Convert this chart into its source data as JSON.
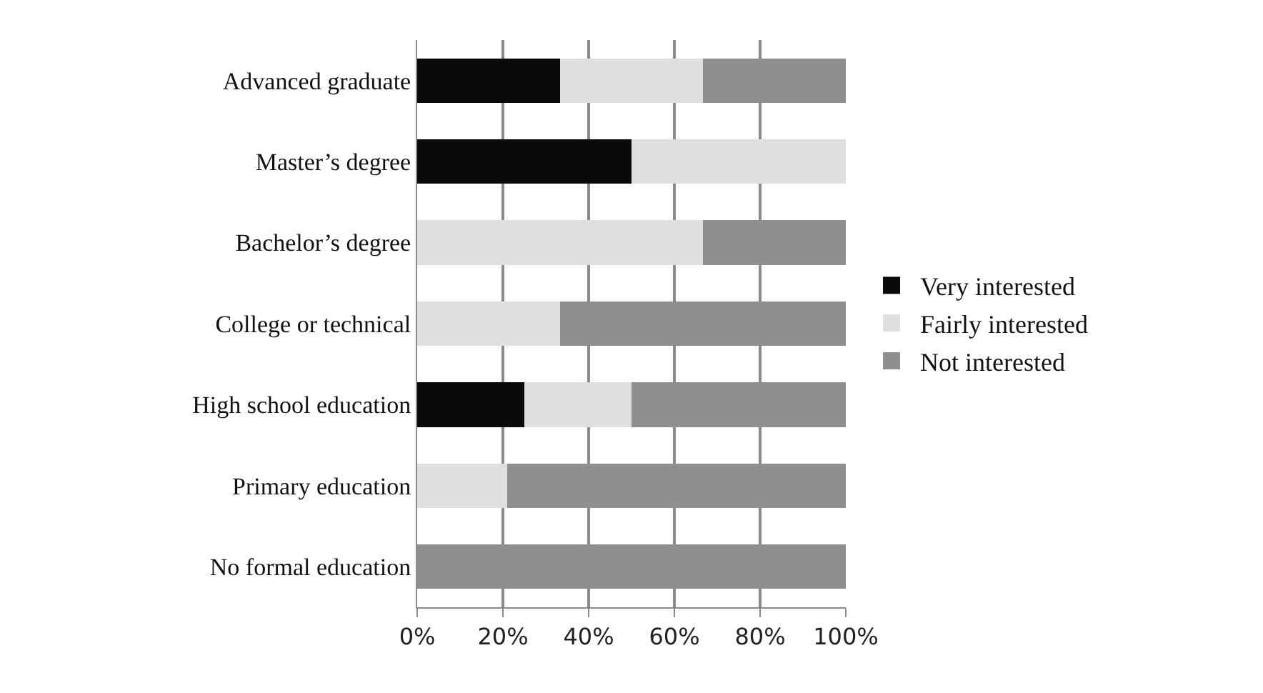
{
  "chart_data": {
    "type": "bar",
    "orientation": "horizontal",
    "stacked": true,
    "categories": [
      "Advanced graduate",
      "Master’s degree",
      "Bachelor’s degree",
      "College or technical",
      "High school education",
      "Primary education",
      "No formal education"
    ],
    "series": [
      {
        "name": "Very interested",
        "color": "#0a0a0a",
        "values": [
          33.3,
          50,
          0,
          0,
          25,
          0,
          0
        ]
      },
      {
        "name": "Fairly interested",
        "color": "#dfdfdf",
        "values": [
          33.3,
          50,
          66.7,
          33.3,
          25,
          21,
          0
        ]
      },
      {
        "name": "Not interested",
        "color": "#8f8f8f",
        "values": [
          33.4,
          0,
          33.3,
          66.7,
          50,
          79,
          100
        ]
      }
    ],
    "xlim": [
      0,
      100
    ],
    "xticks": [
      {
        "value": 0,
        "label": "0%"
      },
      {
        "value": 20,
        "label": "20%"
      },
      {
        "value": 40,
        "label": "40%"
      },
      {
        "value": 60,
        "label": "60%"
      },
      {
        "value": 80,
        "label": "80%"
      },
      {
        "value": 100,
        "label": "100%"
      }
    ],
    "grid": "x",
    "legend": "right"
  }
}
